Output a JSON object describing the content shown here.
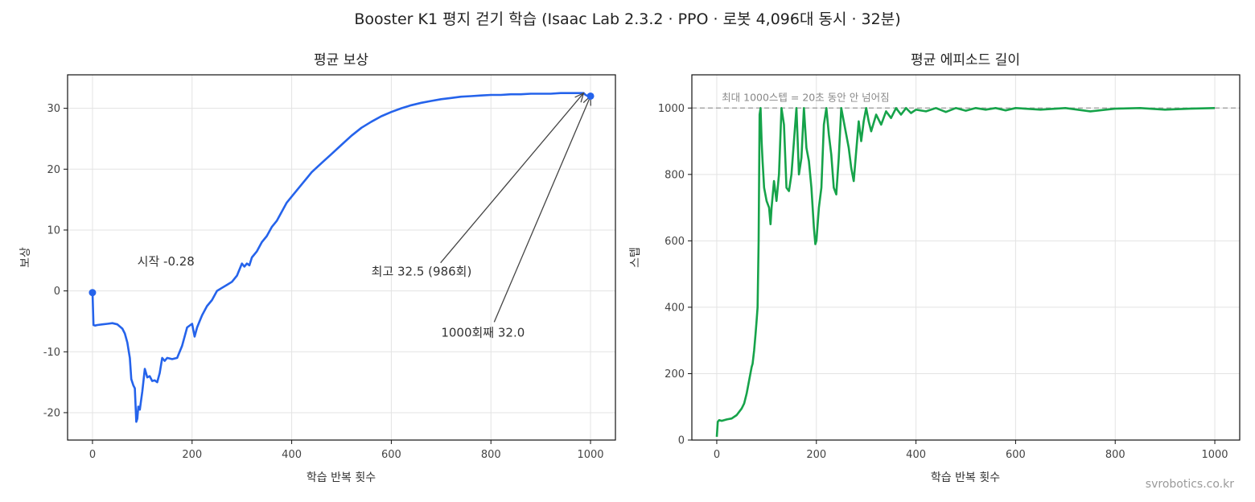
{
  "suptitle": "Booster K1 평지 걷기 학습 (Isaac Lab 2.3.2 · PPO · 로봇 4,096대 동시 · 32분)",
  "watermark": "svrobotics.co.kr",
  "chart_data": [
    {
      "type": "line",
      "title": "평균 보상",
      "xlabel": "학습 반복 횟수",
      "ylabel": "보상",
      "xlim": [
        -50,
        1050
      ],
      "ylim": [
        -24.5,
        35.5
      ],
      "xticks": [
        0,
        200,
        400,
        600,
        800,
        1000
      ],
      "yticks": [
        -20,
        -10,
        0,
        10,
        20,
        30
      ],
      "grid": true,
      "color": "#2563eb",
      "series": [
        {
          "x": [
            0,
            2,
            5,
            10,
            20,
            30,
            40,
            50,
            60,
            65,
            70,
            75,
            78,
            82,
            85,
            88,
            90,
            92,
            95,
            100,
            105,
            110,
            115,
            120,
            125,
            130,
            135,
            140,
            145,
            150,
            160,
            170,
            180,
            190,
            200,
            205,
            210,
            215,
            220,
            230,
            240,
            250,
            260,
            270,
            280,
            290,
            300,
            305,
            310,
            315,
            320,
            330,
            340,
            350,
            360,
            370,
            380,
            390,
            400,
            420,
            440,
            460,
            480,
            500,
            520,
            540,
            560,
            580,
            600,
            620,
            640,
            660,
            680,
            700,
            720,
            740,
            760,
            780,
            800,
            820,
            840,
            860,
            880,
            900,
            920,
            940,
            960,
            980,
            986,
            990,
            995,
            1000
          ],
          "y": [
            -0.28,
            -5.6,
            -5.7,
            -5.6,
            -5.5,
            -5.4,
            -5.3,
            -5.5,
            -6.2,
            -7.0,
            -8.5,
            -11.0,
            -14.5,
            -15.5,
            -16.0,
            -21.5,
            -21.0,
            -19.0,
            -19.5,
            -16.5,
            -12.8,
            -14.2,
            -14.0,
            -14.8,
            -14.7,
            -15.0,
            -13.5,
            -11.0,
            -11.5,
            -11.0,
            -11.2,
            -11.0,
            -9.0,
            -6.0,
            -5.4,
            -7.5,
            -6.0,
            -5.0,
            -4.0,
            -2.5,
            -1.5,
            0.0,
            0.5,
            1.0,
            1.5,
            2.5,
            4.5,
            4.0,
            4.5,
            4.2,
            5.5,
            6.5,
            8.0,
            9.0,
            10.5,
            11.5,
            13.0,
            14.5,
            15.5,
            17.5,
            19.5,
            21.0,
            22.5,
            24.0,
            25.5,
            26.8,
            27.8,
            28.7,
            29.4,
            30.0,
            30.5,
            30.9,
            31.2,
            31.5,
            31.7,
            31.9,
            32.0,
            32.1,
            32.2,
            32.2,
            32.3,
            32.3,
            32.4,
            32.4,
            32.4,
            32.5,
            32.5,
            32.5,
            32.5,
            32.2,
            32.0,
            32.0
          ]
        }
      ],
      "annotations": [
        {
          "text": "시작 -0.28",
          "x": 0,
          "y": -0.28,
          "text_x": 90,
          "text_y": 4.2
        },
        {
          "text": "최고 32.5 (986회)",
          "x": 986,
          "y": 32.5,
          "text_x": 560,
          "text_y": 2.5
        },
        {
          "text": "1000회째 32.0",
          "x": 1000,
          "y": 32.0,
          "text_x": 700,
          "text_y": -7.5
        }
      ]
    },
    {
      "type": "line",
      "title": "평균 에피소드 길이",
      "xlabel": "학습 반복 횟수",
      "ylabel": "스텝",
      "xlim": [
        -50,
        1050
      ],
      "ylim": [
        0,
        1100
      ],
      "xticks": [
        0,
        200,
        400,
        600,
        800,
        1000
      ],
      "yticks": [
        0,
        200,
        400,
        600,
        800,
        1000
      ],
      "grid": true,
      "color": "#16a34a",
      "reference_line": {
        "y": 1000,
        "label": "최대 1000스텝 = 20초 동안 안 넘어짐",
        "style": "dashed",
        "color": "#999999"
      },
      "series": [
        {
          "x": [
            0,
            2,
            5,
            10,
            20,
            30,
            40,
            50,
            55,
            60,
            65,
            70,
            72,
            75,
            78,
            80,
            82,
            84,
            86,
            88,
            90,
            92,
            95,
            100,
            105,
            108,
            110,
            115,
            120,
            125,
            130,
            135,
            140,
            145,
            150,
            155,
            160,
            165,
            170,
            175,
            180,
            185,
            190,
            195,
            198,
            200,
            205,
            210,
            215,
            220,
            225,
            230,
            235,
            240,
            245,
            250,
            255,
            260,
            265,
            270,
            275,
            280,
            285,
            290,
            295,
            300,
            305,
            310,
            320,
            330,
            340,
            350,
            360,
            370,
            380,
            390,
            400,
            420,
            440,
            460,
            480,
            500,
            520,
            540,
            560,
            580,
            600,
            650,
            700,
            750,
            800,
            850,
            900,
            950,
            1000
          ],
          "y": [
            10,
            55,
            60,
            58,
            62,
            65,
            75,
            95,
            110,
            140,
            180,
            220,
            230,
            270,
            320,
            360,
            400,
            600,
            980,
            1000,
            900,
            840,
            760,
            720,
            700,
            650,
            700,
            780,
            720,
            800,
            1000,
            950,
            760,
            750,
            800,
            900,
            1000,
            800,
            850,
            1000,
            880,
            840,
            760,
            640,
            590,
            600,
            700,
            760,
            950,
            1000,
            920,
            860,
            760,
            740,
            850,
            1000,
            960,
            920,
            880,
            820,
            780,
            870,
            960,
            900,
            960,
            1000,
            960,
            930,
            980,
            950,
            990,
            970,
            1000,
            980,
            1000,
            985,
            995,
            990,
            1000,
            988,
            1000,
            992,
            1000,
            995,
            1000,
            993,
            1000,
            995,
            1000,
            990,
            998,
            1000,
            995,
            998,
            1000
          ]
        }
      ]
    }
  ]
}
